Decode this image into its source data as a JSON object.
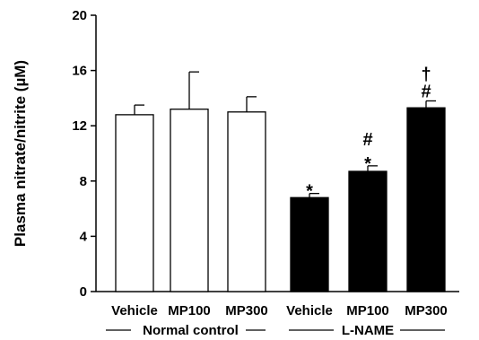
{
  "chart_data": {
    "type": "bar",
    "title": "",
    "xlabel": "",
    "ylabel": "Plasma nitrate/nitrite (µM)",
    "ylim": [
      0,
      20
    ],
    "yticks": [
      0,
      4,
      8,
      12,
      16,
      20
    ],
    "grid": false,
    "categories": [
      "Vehicle",
      "MP100",
      "MP300",
      "Vehicle",
      "MP100",
      "MP300"
    ],
    "values": [
      12.8,
      13.2,
      13.0,
      6.8,
      8.7,
      13.3
    ],
    "errors": [
      0.7,
      2.7,
      1.1,
      0.3,
      0.4,
      0.5
    ],
    "fills": [
      "#ffffff",
      "#ffffff",
      "#ffffff",
      "#000000",
      "#000000",
      "#000000"
    ],
    "groups": [
      {
        "label": "Normal control",
        "start": 0,
        "end": 2
      },
      {
        "label": "L-NAME",
        "start": 3,
        "end": 5
      }
    ],
    "annotations": [
      {
        "bar": 3,
        "lines": [
          "*"
        ]
      },
      {
        "bar": 4,
        "lines": [
          "#",
          "*"
        ]
      },
      {
        "bar": 5,
        "lines": [
          "†",
          "#"
        ]
      }
    ]
  }
}
